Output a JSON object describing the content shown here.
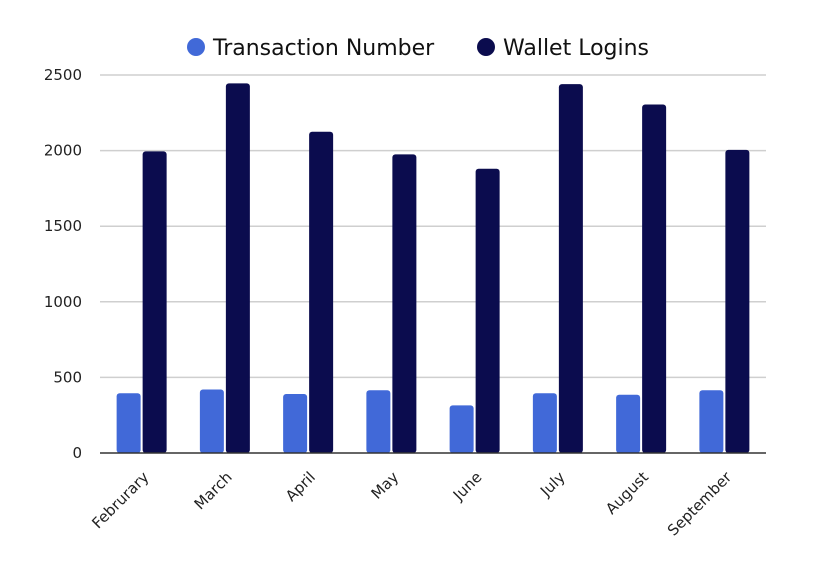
{
  "chart_data": {
    "type": "bar",
    "categories": [
      "Februrary",
      "March",
      "April",
      "May",
      "June",
      "July",
      "August",
      "September"
    ],
    "series": [
      {
        "name": "Transaction Number",
        "color": "#4169d8",
        "values": [
          395,
          420,
          390,
          415,
          315,
          395,
          385,
          415
        ]
      },
      {
        "name": "Wallet Logins",
        "color": "#0b0c4e",
        "values": [
          1995,
          2445,
          2125,
          1975,
          1880,
          2440,
          2305,
          2005
        ]
      }
    ],
    "yticks": [
      "0",
      "500",
      "1000",
      "1500",
      "2000",
      "2500"
    ],
    "ylim": [
      0,
      2500
    ],
    "grid": true,
    "legend_position": "top-center"
  }
}
